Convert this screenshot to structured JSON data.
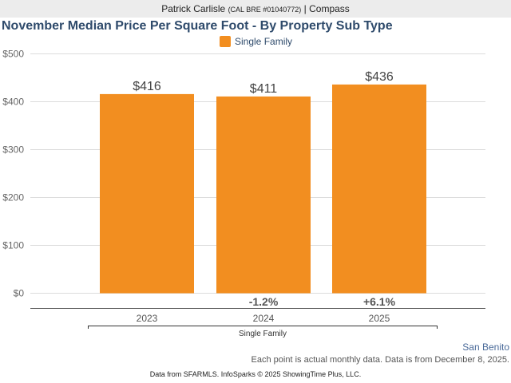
{
  "header": {
    "agent_name": "Patrick Carlisle",
    "license": "(CAL BRE #01040772)",
    "separator": "|",
    "brokerage": "Compass"
  },
  "chart_data": {
    "type": "bar",
    "title": "November Median Price Per Square Foot - By Property Sub Type",
    "legend": [
      {
        "name": "Single Family",
        "color": "#f28e20"
      }
    ],
    "legend_position": "top-center",
    "categories": [
      "2023",
      "2024",
      "2025"
    ],
    "group_label": "Single Family",
    "series": [
      {
        "name": "Single Family",
        "values": [
          416,
          411,
          436
        ],
        "color": "#f28e20"
      }
    ],
    "data_labels": [
      "$416",
      "$411",
      "$436"
    ],
    "change_labels": [
      "",
      "-1.2%",
      "+6.1%"
    ],
    "yticks": [
      "$0",
      "$100",
      "$200",
      "$300",
      "$400",
      "$500"
    ],
    "ytick_values": [
      0,
      100,
      200,
      300,
      400,
      500
    ],
    "ylim": [
      0,
      500
    ],
    "grid": true,
    "xlabel": "",
    "ylabel": ""
  },
  "footer": {
    "region": "San Benito",
    "note": "Each point is actual monthly data. Data is from December 8, 2025.",
    "credit": "Data from SFARMLS. InfoSparks © 2025 ShowingTime Plus, LLC."
  }
}
